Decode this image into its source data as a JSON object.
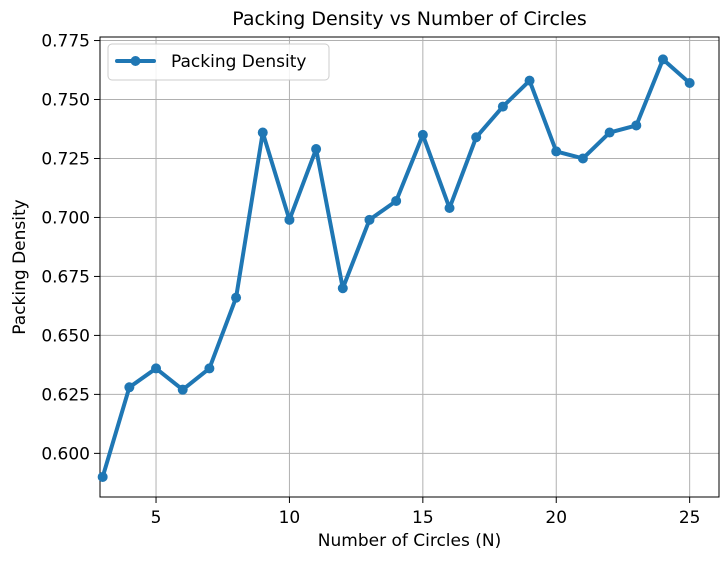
{
  "chart_data": {
    "type": "line",
    "title": "Packing Density vs Number of Circles",
    "xlabel": "Number of Circles (N)",
    "ylabel": "Packing Density",
    "x": [
      3,
      4,
      5,
      6,
      7,
      8,
      9,
      10,
      11,
      12,
      13,
      14,
      15,
      16,
      17,
      18,
      19,
      20,
      21,
      22,
      23,
      24,
      25
    ],
    "series": [
      {
        "name": "Packing Density",
        "color": "#1f77b4",
        "values": [
          0.59,
          0.628,
          0.636,
          0.627,
          0.636,
          0.666,
          0.736,
          0.699,
          0.729,
          0.67,
          0.699,
          0.707,
          0.735,
          0.704,
          0.734,
          0.747,
          0.758,
          0.728,
          0.725,
          0.736,
          0.739,
          0.767,
          0.757
        ]
      }
    ],
    "xlim": [
      2.9,
      26.1
    ],
    "ylim": [
      0.5815,
      0.7765
    ],
    "xticks": [
      5,
      10,
      15,
      20,
      25
    ],
    "xtick_labels": [
      "5",
      "10",
      "15",
      "20",
      "25"
    ],
    "yticks": [
      0.6,
      0.625,
      0.65,
      0.675,
      0.7,
      0.725,
      0.75,
      0.775
    ],
    "ytick_labels": [
      "0.600",
      "0.625",
      "0.650",
      "0.675",
      "0.700",
      "0.725",
      "0.750",
      "0.775"
    ],
    "grid": true,
    "legend_position": "upper left"
  }
}
